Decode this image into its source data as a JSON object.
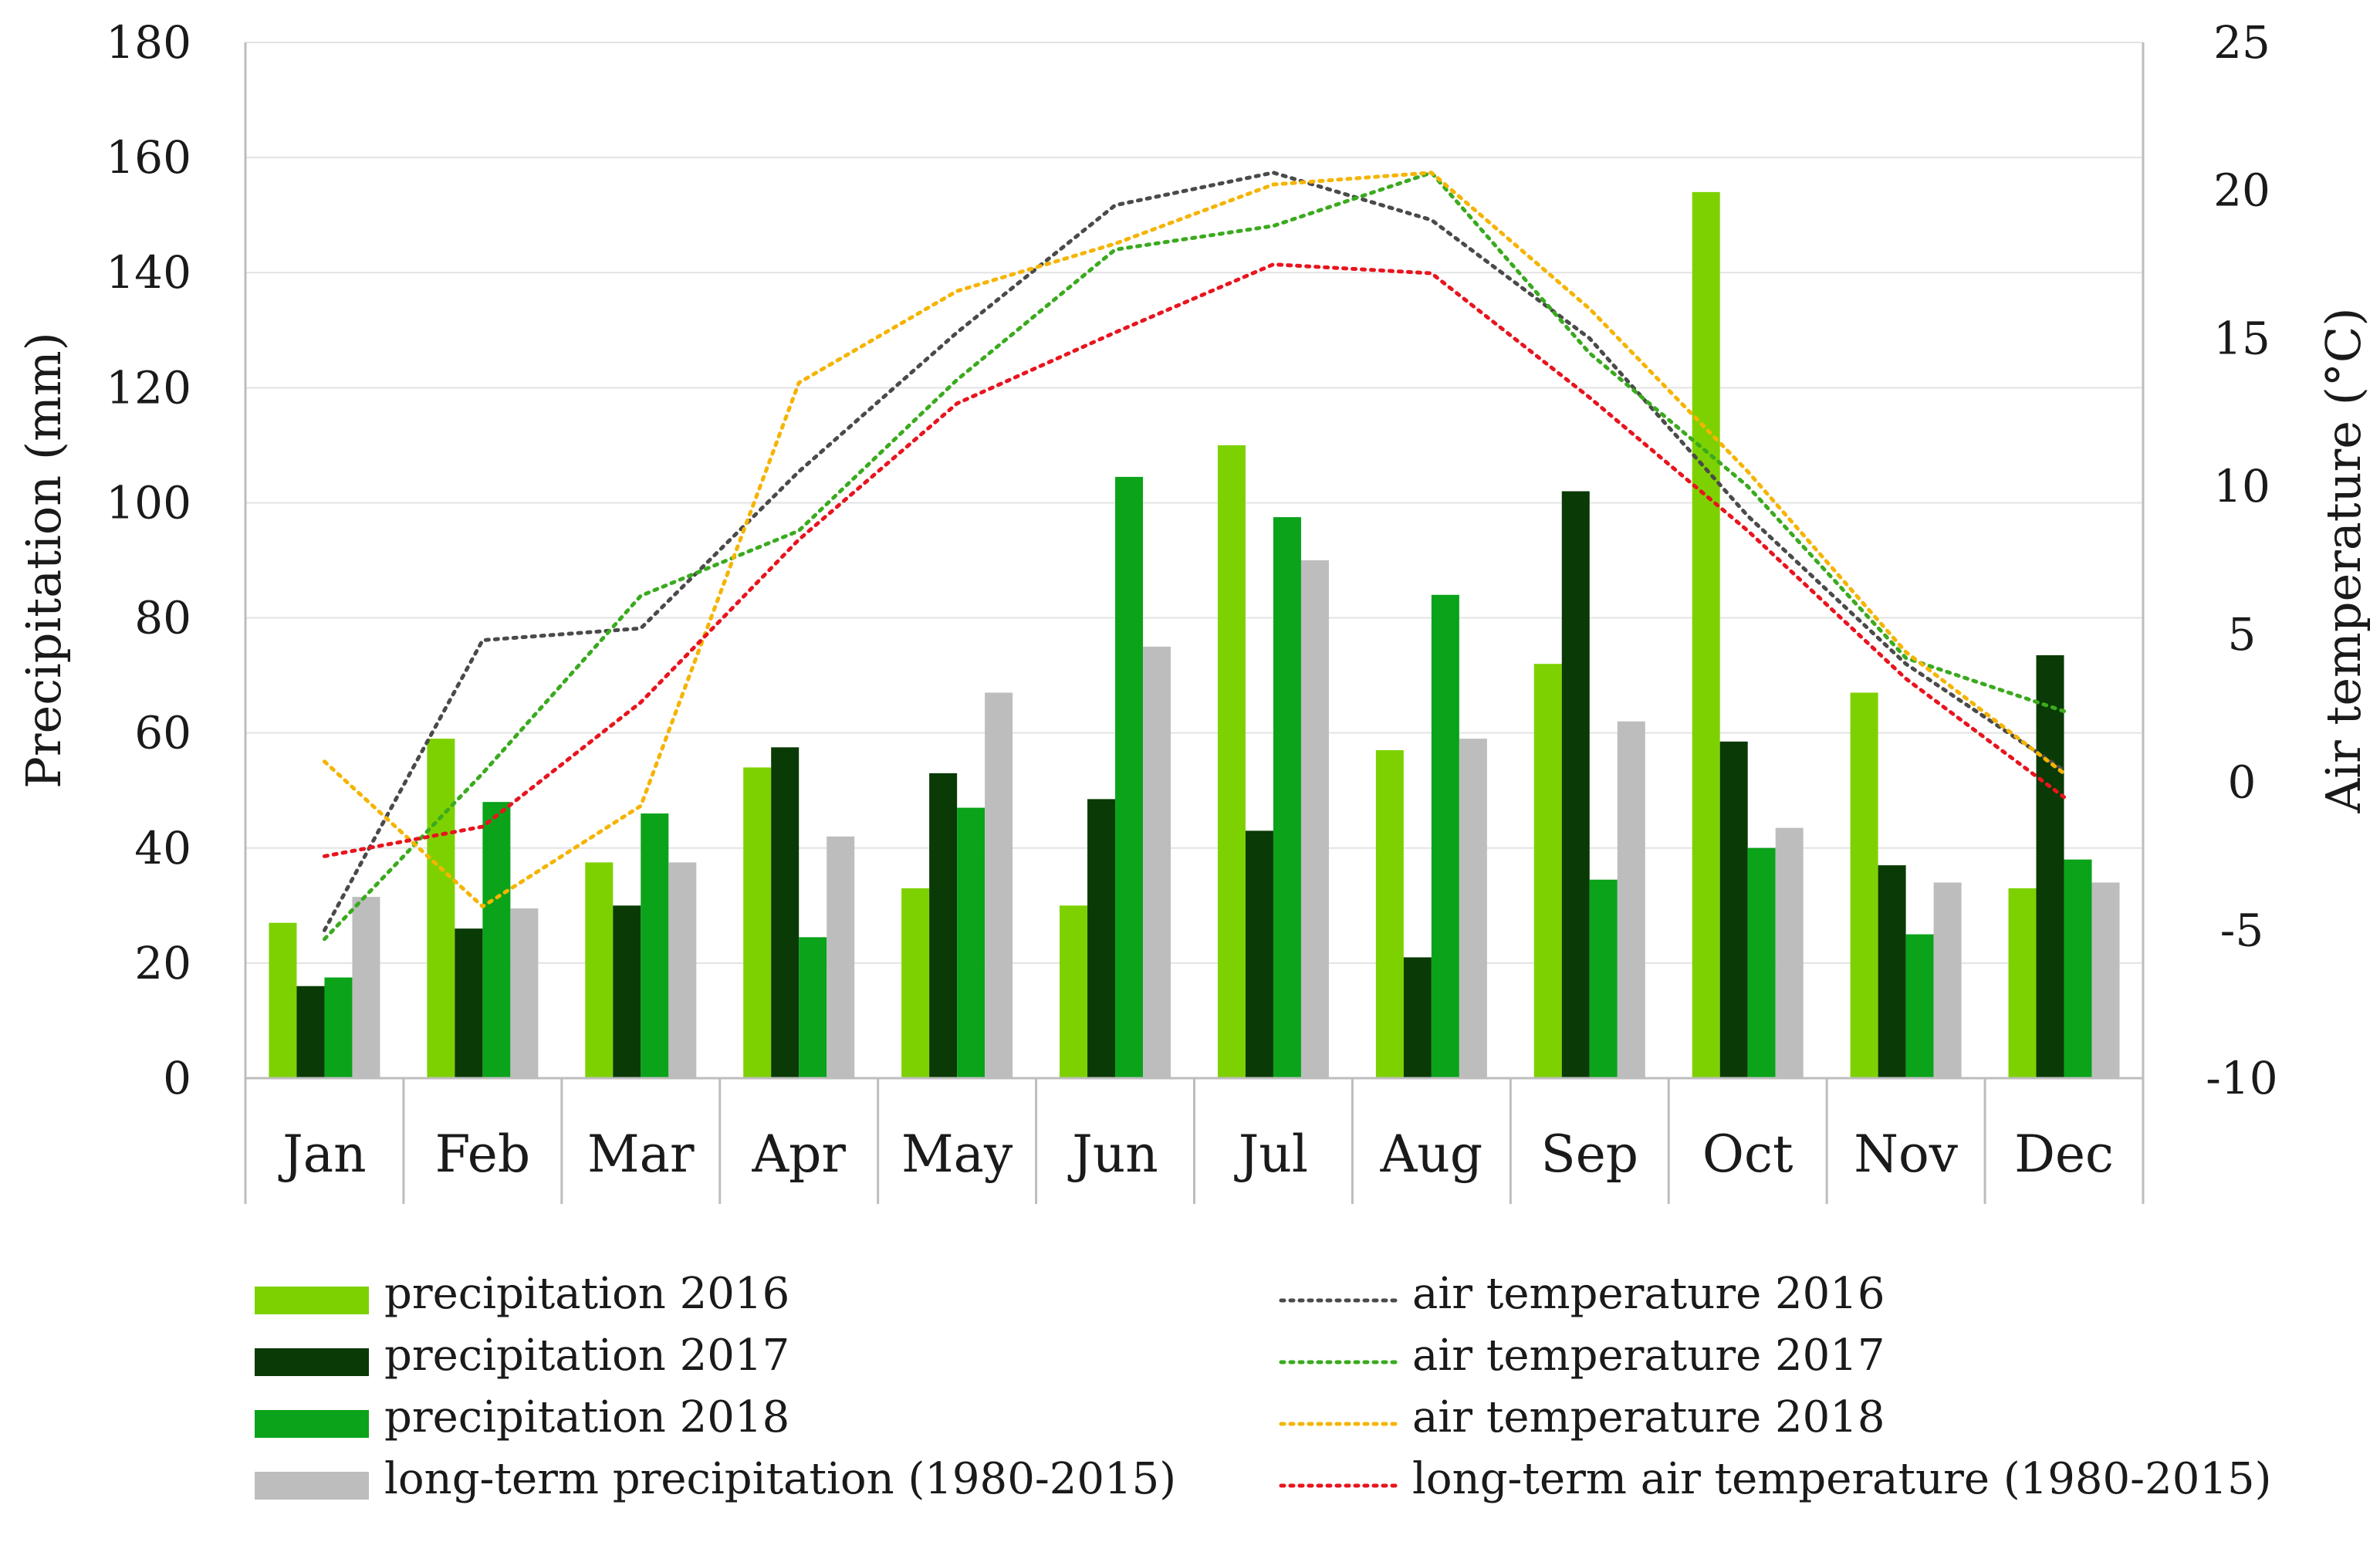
{
  "chart_data": {
    "type": "bar+line",
    "categories": [
      "Jan",
      "Feb",
      "Mar",
      "Apr",
      "May",
      "Jun",
      "Jul",
      "Aug",
      "Sep",
      "Oct",
      "Nov",
      "Dec"
    ],
    "ylabel": "Precipitation (mm)",
    "ylim": [
      0,
      180
    ],
    "yticks": [
      0,
      20,
      40,
      60,
      80,
      100,
      120,
      140,
      160,
      180
    ],
    "y2label": "Air temperature (°C)",
    "y2lim": [
      -10,
      25
    ],
    "y2ticks": [
      -10,
      -5,
      0,
      5,
      10,
      15,
      20,
      25
    ],
    "bar_series": [
      {
        "name": "precipitation 2016",
        "color": "#7ed100",
        "values": [
          27,
          59,
          37.5,
          54,
          33,
          30,
          110,
          57,
          72,
          154,
          67,
          33
        ]
      },
      {
        "name": "precipitation 2017",
        "color": "#0a3a05",
        "values": [
          16,
          26,
          30,
          57.5,
          53,
          48.5,
          43,
          21,
          102,
          58.5,
          37,
          73.5
        ]
      },
      {
        "name": "precipitation 2018",
        "color": "#0aa31a",
        "values": [
          17.5,
          48,
          46,
          24.5,
          47,
          104.5,
          97.5,
          84,
          34.5,
          40,
          25,
          38
        ]
      },
      {
        "name": "long-term precipitation (1980-2015)",
        "color": "#bdbdbd",
        "values": [
          31.5,
          29.5,
          37.5,
          42,
          67,
          75,
          90,
          59,
          62,
          43.5,
          34,
          34
        ]
      }
    ],
    "line_series": [
      {
        "name": "air temperature 2016",
        "color": "#4a4a4a",
        "values": [
          -5,
          4.8,
          5.2,
          10.5,
          15.2,
          19.5,
          20.6,
          19.0,
          15.0,
          9.0,
          4.0,
          0.4
        ]
      },
      {
        "name": "air temperature 2017",
        "color": "#3aaa1e",
        "values": [
          -5.3,
          0.3,
          6.3,
          8.5,
          13.6,
          18.0,
          18.8,
          20.6,
          14.5,
          10.0,
          4.2,
          2.4
        ]
      },
      {
        "name": "air temperature 2018",
        "color": "#f5b400",
        "values": [
          0.7,
          -4.2,
          -0.8,
          13.5,
          16.6,
          18.2,
          20.2,
          20.6,
          16.0,
          10.5,
          4.4,
          0.3
        ]
      },
      {
        "name": "long-term air temperature (1980-2015)",
        "color": "#e8141e",
        "values": [
          -2.5,
          -1.5,
          2.7,
          8.2,
          12.8,
          15.2,
          17.5,
          17.2,
          13.0,
          8.5,
          3.5,
          -0.5
        ]
      }
    ]
  }
}
